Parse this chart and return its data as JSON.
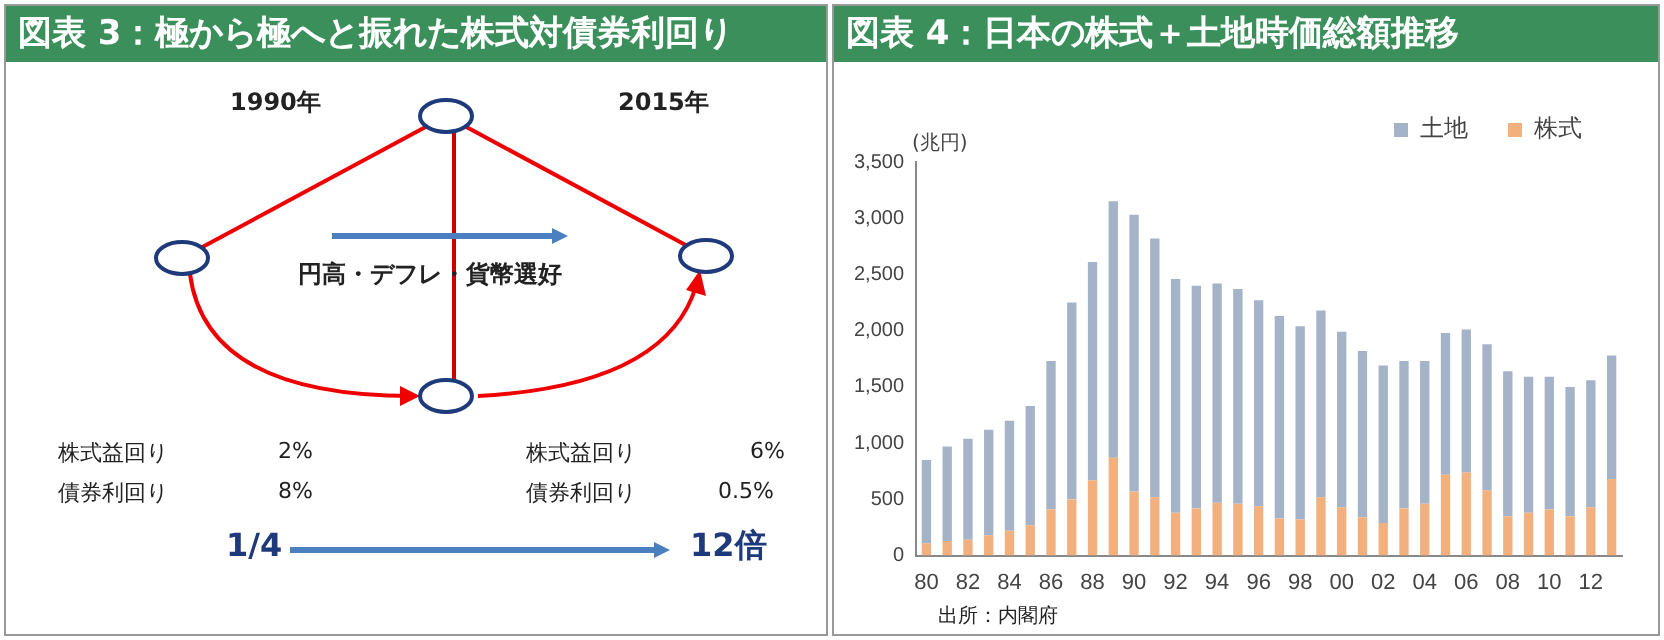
{
  "chart_data": [
    {
      "type": "other",
      "title": "図表 3：極から極へと振れた株式対債券利回り",
      "annotations": [
        "1990年",
        "2015年",
        "円高・デフレ・貨幣選好",
        "株式益回り",
        "2%",
        "債券利回り",
        "8%",
        "株式益回り",
        "6%",
        "債券利回り",
        "0.5%",
        "1/4",
        "12倍"
      ]
    },
    {
      "type": "bar",
      "title": "図表 4：日本の株式＋土地時価総額推移",
      "ylabel": "(兆円)",
      "stacked": true,
      "categories": [
        "80",
        null,
        "82",
        null,
        "84",
        null,
        "86",
        null,
        "88",
        null,
        "90",
        null,
        "92",
        null,
        "94",
        null,
        "96",
        null,
        "98",
        null,
        "00",
        null,
        "02",
        null,
        "04",
        null,
        "06",
        null,
        "08",
        null,
        "10",
        null,
        "12",
        null
      ],
      "series": [
        {
          "name": "株式",
          "color": "#f2b07f",
          "values": [
            110,
            130,
            140,
            180,
            220,
            270,
            410,
            500,
            670,
            870,
            570,
            520,
            380,
            420,
            470,
            460,
            440,
            330,
            320,
            520,
            430,
            340,
            290,
            420,
            460,
            720,
            740,
            580,
            350,
            380,
            410,
            350,
            430,
            680
          ]
        },
        {
          "name": "土地",
          "color": "#a5b3c8",
          "values": [
            740,
            840,
            900,
            940,
            980,
            1060,
            1320,
            1750,
            1940,
            2280,
            2460,
            2300,
            2080,
            1980,
            1950,
            1910,
            1830,
            1800,
            1720,
            1660,
            1560,
            1480,
            1400,
            1310,
            1270,
            1260,
            1270,
            1300,
            1290,
            1210,
            1180,
            1150,
            1130,
            1100
          ]
        }
      ],
      "ylim": [
        0,
        3500
      ],
      "yticks": [
        0,
        500,
        {
          "value": 1000,
          "label": "1,000"
        },
        {
          "value": 1500,
          "label": "1,500"
        },
        {
          "value": 2000,
          "label": "2,000"
        },
        {
          "value": 2500,
          "label": "2,500"
        },
        {
          "value": 3000,
          "label": "3,000"
        },
        {
          "value": 3500,
          "label": "3,500"
        }
      ],
      "grid": false,
      "legend": "top right",
      "annotations": [
        "出所：内閣府"
      ]
    }
  ]
}
